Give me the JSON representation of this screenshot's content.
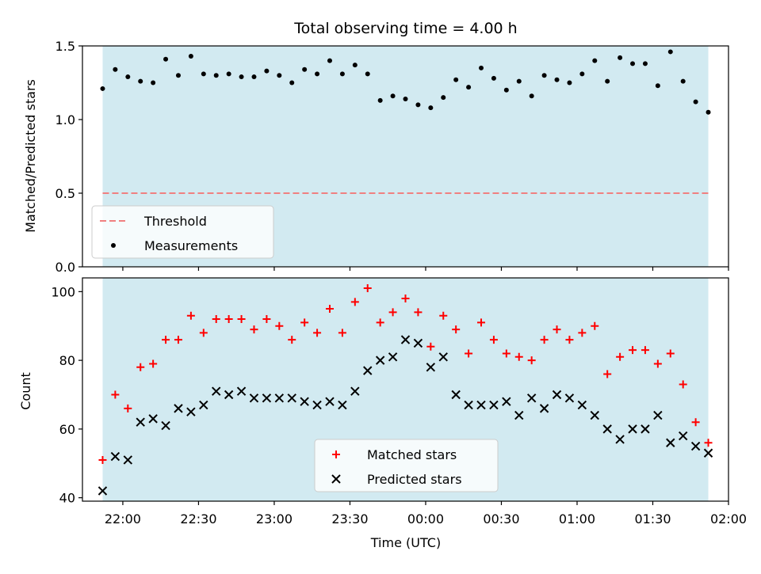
{
  "chart_data": [
    {
      "type": "scatter",
      "title": "Total observing time = 4.00 h",
      "xlabel": "",
      "ylabel": "Matched/Predicted stars",
      "ylim": [
        0,
        1.5
      ],
      "yticks": [
        "0.0",
        "0.5",
        "1.0",
        "1.5"
      ],
      "shaded_region": {
        "x_start": "21:52",
        "x_end": "01:52",
        "color": "#add8e6"
      },
      "threshold": {
        "name": "Threshold",
        "value": 0.5,
        "color": "#f08080",
        "style": "dashed"
      },
      "legend": {
        "placement": "lower-left",
        "entries": [
          "Threshold",
          "Measurements"
        ]
      },
      "series": [
        {
          "name": "Measurements",
          "color": "#000000",
          "marker": "dot",
          "x_minutes_after_2152": [
            0,
            5,
            10,
            15,
            20,
            25,
            30,
            35,
            40,
            45,
            50,
            55,
            60,
            65,
            70,
            75,
            80,
            85,
            90,
            95,
            100,
            105,
            110,
            115,
            120,
            125,
            130,
            135,
            140,
            145,
            150,
            155,
            160,
            165,
            170,
            175,
            180,
            185,
            190,
            195,
            200,
            205,
            210,
            215,
            220,
            225,
            230,
            235,
            240
          ],
          "y": [
            1.21,
            1.34,
            1.29,
            1.26,
            1.25,
            1.41,
            1.3,
            1.43,
            1.31,
            1.3,
            1.31,
            1.29,
            1.29,
            1.33,
            1.3,
            1.25,
            1.34,
            1.31,
            1.4,
            1.31,
            1.37,
            1.31,
            1.13,
            1.16,
            1.14,
            1.1,
            1.08,
            1.15,
            1.27,
            1.22,
            1.35,
            1.28,
            1.2,
            1.26,
            1.16,
            1.3,
            1.27,
            1.25,
            1.31,
            1.4,
            1.26,
            1.42,
            1.38,
            1.38,
            1.23,
            1.46,
            1.26,
            1.12,
            1.05
          ]
        }
      ]
    },
    {
      "type": "scatter",
      "title": "",
      "xlabel": "Time (UTC)",
      "ylabel": "Count",
      "ylim": [
        39,
        104
      ],
      "yticks": [
        "40",
        "60",
        "80",
        "100"
      ],
      "xticks": [
        "22:00",
        "22:30",
        "23:00",
        "23:30",
        "00:00",
        "00:30",
        "01:00",
        "01:30",
        "02:00"
      ],
      "shaded_region": {
        "x_start": "21:52",
        "x_end": "01:52",
        "color": "#add8e6"
      },
      "legend": {
        "placement": "lower-center",
        "entries": [
          "Matched stars",
          "Predicted stars"
        ]
      },
      "series": [
        {
          "name": "Matched stars",
          "color": "#ff0000",
          "marker": "plus",
          "x_minutes_after_2152": [
            0,
            5,
            10,
            15,
            20,
            25,
            30,
            35,
            40,
            45,
            50,
            55,
            60,
            65,
            70,
            75,
            80,
            85,
            90,
            95,
            100,
            105,
            110,
            115,
            120,
            125,
            130,
            135,
            140,
            145,
            150,
            155,
            160,
            165,
            170,
            175,
            180,
            185,
            190,
            195,
            200,
            205,
            210,
            215,
            220,
            225,
            230,
            235,
            240
          ],
          "y": [
            51,
            70,
            66,
            78,
            79,
            86,
            86,
            93,
            88,
            92,
            92,
            92,
            89,
            92,
            90,
            86,
            91,
            88,
            95,
            88,
            97,
            101,
            91,
            94,
            98,
            94,
            84,
            93,
            89,
            82,
            91,
            86,
            82,
            81,
            80,
            86,
            89,
            86,
            88,
            90,
            76,
            81,
            83,
            83,
            79,
            82,
            73,
            62,
            56
          ]
        },
        {
          "name": "Predicted stars",
          "color": "#000000",
          "marker": "x",
          "x_minutes_after_2152": [
            0,
            5,
            10,
            15,
            20,
            25,
            30,
            35,
            40,
            45,
            50,
            55,
            60,
            65,
            70,
            75,
            80,
            85,
            90,
            95,
            100,
            105,
            110,
            115,
            120,
            125,
            130,
            135,
            140,
            145,
            150,
            155,
            160,
            165,
            170,
            175,
            180,
            185,
            190,
            195,
            200,
            205,
            210,
            215,
            220,
            225,
            230,
            235,
            240
          ],
          "y": [
            42,
            52,
            51,
            62,
            63,
            61,
            66,
            65,
            67,
            71,
            70,
            71,
            69,
            69,
            69,
            69,
            68,
            67,
            68,
            67,
            71,
            77,
            80,
            81,
            86,
            85,
            78,
            81,
            70,
            67,
            67,
            67,
            68,
            64,
            69,
            66,
            70,
            69,
            67,
            64,
            60,
            57,
            60,
            60,
            64,
            56,
            58,
            55,
            53
          ]
        }
      ]
    }
  ]
}
